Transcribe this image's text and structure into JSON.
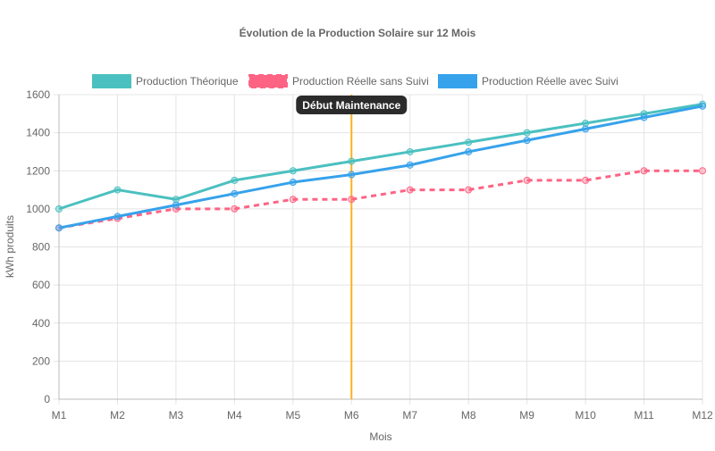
{
  "chart_data": {
    "type": "line",
    "title": "Évolution de la Production Solaire sur 12 Mois",
    "xlabel": "Mois",
    "ylabel": "kWh produits",
    "categories": [
      "M1",
      "M2",
      "M3",
      "M4",
      "M5",
      "M6",
      "M7",
      "M8",
      "M9",
      "M10",
      "M11",
      "M12"
    ],
    "ylim": [
      0,
      1600
    ],
    "yticks": [
      0,
      200,
      400,
      600,
      800,
      1000,
      1200,
      1400,
      1600
    ],
    "grid": true,
    "legend_position": "top",
    "series": [
      {
        "name": "Production Théorique",
        "color": "#4bc0c0",
        "dashed": false,
        "values": [
          1000,
          1100,
          1050,
          1150,
          1200,
          1250,
          1300,
          1350,
          1400,
          1450,
          1500,
          1550
        ]
      },
      {
        "name": "Production Réelle sans Suivi",
        "color": "#ff6384",
        "dashed": true,
        "values": [
          900,
          950,
          1000,
          1000,
          1050,
          1050,
          1100,
          1100,
          1150,
          1150,
          1200,
          1200
        ]
      },
      {
        "name": "Production Réelle avec Suivi",
        "color": "#36a2eb",
        "dashed": false,
        "values": [
          900,
          960,
          1020,
          1080,
          1140,
          1180,
          1230,
          1300,
          1360,
          1420,
          1480,
          1540
        ]
      }
    ],
    "annotations": [
      {
        "type": "vertical-line",
        "x": "M6",
        "label": "Début Maintenance",
        "color": "#ffb020"
      }
    ]
  }
}
